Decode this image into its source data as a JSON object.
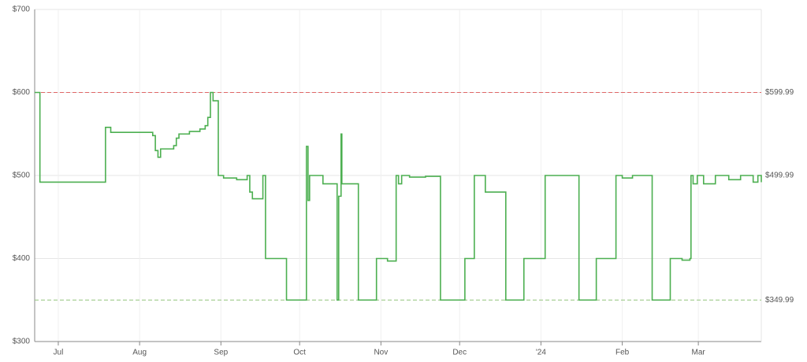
{
  "chart_data": {
    "type": "line",
    "step": true,
    "color": "#4caf50",
    "x": [
      0,
      2,
      27,
      29,
      45,
      46,
      47,
      48,
      53,
      54,
      55,
      59,
      63,
      65,
      66,
      67,
      68,
      70,
      72,
      77,
      81,
      82,
      83,
      87,
      88,
      96,
      103.6,
      104.2,
      104.8,
      109.9,
      115.3,
      115.9,
      116.8,
      117.1,
      123.4,
      130.3,
      134.5,
      137.8,
      138.7,
      139.9,
      142.9,
      149,
      154.7,
      164,
      167.6,
      171.8,
      179.6,
      186.5,
      194.6,
      207.5,
      214.1,
      221.6,
      224,
      227.9,
      235.4,
      242.3,
      246.8,
      249.8,
      250.2,
      251,
      252.6,
      255,
      259.5,
      264.6,
      269.1,
      273.9,
      275.7,
      277
    ],
    "values": [
      600,
      492,
      558,
      552,
      548,
      530,
      522,
      532,
      536,
      545,
      550,
      553,
      556,
      560,
      570,
      600,
      590,
      500,
      497,
      495,
      500,
      480,
      472,
      500,
      400,
      350,
      535,
      470,
      500,
      490,
      350,
      475,
      550,
      490,
      350,
      400,
      397,
      500,
      490,
      500,
      498,
      499,
      350,
      400,
      500,
      480,
      350,
      400,
      500,
      350,
      400,
      500,
      497,
      500,
      350,
      400,
      398,
      400,
      500,
      490,
      500,
      490,
      500,
      495,
      500,
      492,
      500,
      492
    ],
    "xlim": [
      0,
      277
    ],
    "xticks": [
      {
        "value": 9,
        "label": "Jul"
      },
      {
        "value": 40,
        "label": "Aug"
      },
      {
        "value": 71,
        "label": "Sep"
      },
      {
        "value": 101,
        "label": "Oct"
      },
      {
        "value": 132,
        "label": "Nov"
      },
      {
        "value": 162,
        "label": "Dec"
      },
      {
        "value": 193,
        "label": "'24"
      },
      {
        "value": 224,
        "label": "Feb"
      },
      {
        "value": 253,
        "label": "Mar"
      }
    ],
    "ylim": [
      300,
      700
    ],
    "yticks": [
      {
        "value": 300,
        "label": "$300"
      },
      {
        "value": 400,
        "label": "$400"
      },
      {
        "value": 500,
        "label": "$500"
      },
      {
        "value": 600,
        "label": "$600"
      },
      {
        "value": 700,
        "label": "$700"
      }
    ],
    "grid": true,
    "reference_lines": [
      {
        "value": 599.99,
        "label": "$599.99",
        "color": "#e06666",
        "line": true
      },
      {
        "value": 499.99,
        "label": "$499.99",
        "color": "#6aa84f",
        "line": false
      },
      {
        "value": 349.99,
        "label": "$349.99",
        "color": "#93c47d",
        "line": true
      }
    ]
  }
}
